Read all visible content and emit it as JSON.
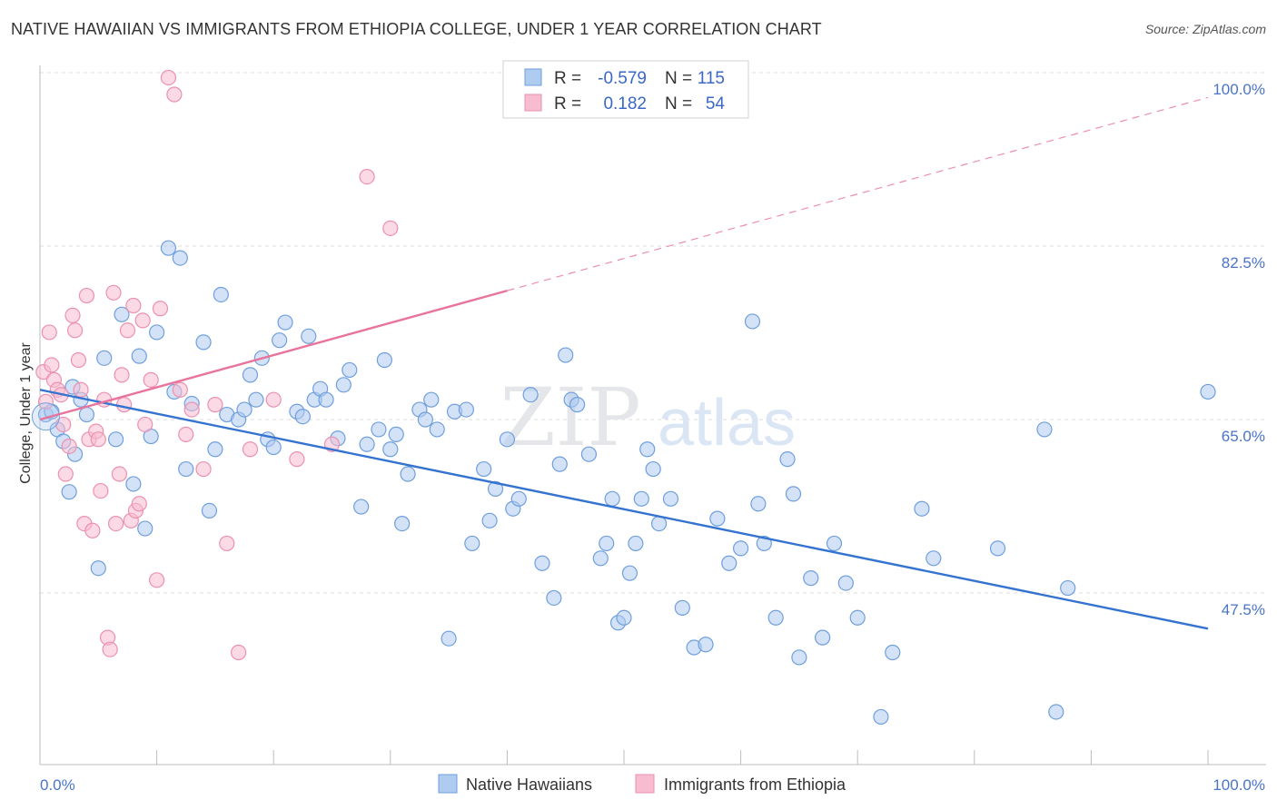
{
  "header": {
    "title": "NATIVE HAWAIIAN VS IMMIGRANTS FROM ETHIOPIA COLLEGE, UNDER 1 YEAR CORRELATION CHART",
    "source": "Source: ZipAtlas.com"
  },
  "watermark": {
    "zip": "ZIP",
    "atlas": "atlas"
  },
  "chart_data": {
    "type": "scatter",
    "ylabel": "College, Under 1 year",
    "xlim": [
      0,
      100
    ],
    "ylim": [
      29,
      100
    ],
    "x_tick_labels": [
      "0.0%",
      "100.0%"
    ],
    "y_ticks": [
      {
        "value": 100,
        "label": "100.0%"
      },
      {
        "value": 82.5,
        "label": "82.5%"
      },
      {
        "value": 65,
        "label": "65.0%"
      },
      {
        "value": 47.5,
        "label": "47.5%"
      }
    ],
    "grid": "horizontal-dashed",
    "legend_position": "top-center",
    "colors": {
      "blue_fill": "#aecbf0",
      "blue_stroke": "#6f9fdd",
      "blue_line": "#3573d0",
      "pink_fill": "#f7bccf",
      "pink_stroke": "#ec91ae",
      "pink_line": "#e8739b",
      "tick_text": "#4a74c8"
    },
    "stats": [
      {
        "r_label": "R =",
        "r_value": "-0.579",
        "n_label": "N =",
        "n_value": "115",
        "color": "blue"
      },
      {
        "r_label": "R =",
        "r_value": "0.182",
        "n_label": "N =",
        "n_value": "54",
        "color": "pink"
      }
    ],
    "series": [
      {
        "name": "Native Hawaiians",
        "color": "blue",
        "trend": {
          "x0": 0,
          "y0": 68.0,
          "x1": 100,
          "y1": 43.9
        },
        "points": [
          [
            0.5,
            65.5
          ],
          [
            1.0,
            65.8
          ],
          [
            1.5,
            64.0
          ],
          [
            2.0,
            62.8
          ],
          [
            2.5,
            57.7
          ],
          [
            2.8,
            68.3
          ],
          [
            3.0,
            61.5
          ],
          [
            3.5,
            67.0
          ],
          [
            4.0,
            65.5
          ],
          [
            5.0,
            50.0
          ],
          [
            5.5,
            71.2
          ],
          [
            6.5,
            63.0
          ],
          [
            7.0,
            75.6
          ],
          [
            8.0,
            58.5
          ],
          [
            8.5,
            71.4
          ],
          [
            9.0,
            54.0
          ],
          [
            9.5,
            63.3
          ],
          [
            10.0,
            73.8
          ],
          [
            11.0,
            82.3
          ],
          [
            11.5,
            67.8
          ],
          [
            12.0,
            81.3
          ],
          [
            12.5,
            60.0
          ],
          [
            13.0,
            66.6
          ],
          [
            14.0,
            72.8
          ],
          [
            14.5,
            55.8
          ],
          [
            15.0,
            62.0
          ],
          [
            15.5,
            77.6
          ],
          [
            16.0,
            65.5
          ],
          [
            17.0,
            65.0
          ],
          [
            17.5,
            66.0
          ],
          [
            18.0,
            69.5
          ],
          [
            18.5,
            67.0
          ],
          [
            19.0,
            71.2
          ],
          [
            19.5,
            63.0
          ],
          [
            20.0,
            62.2
          ],
          [
            20.5,
            73.0
          ],
          [
            21.0,
            74.8
          ],
          [
            22.0,
            65.8
          ],
          [
            22.5,
            65.3
          ],
          [
            23.0,
            73.4
          ],
          [
            23.5,
            67.0
          ],
          [
            24.0,
            68.1
          ],
          [
            24.5,
            67.0
          ],
          [
            25.5,
            63.1
          ],
          [
            26.0,
            68.5
          ],
          [
            26.5,
            70.0
          ],
          [
            27.5,
            56.2
          ],
          [
            28.0,
            62.5
          ],
          [
            29.0,
            64.0
          ],
          [
            29.5,
            71.0
          ],
          [
            30.0,
            62.0
          ],
          [
            30.5,
            63.5
          ],
          [
            31.0,
            54.5
          ],
          [
            31.5,
            59.5
          ],
          [
            32.5,
            66.0
          ],
          [
            33.0,
            65.0
          ],
          [
            33.5,
            67.0
          ],
          [
            34.0,
            64.0
          ],
          [
            35.0,
            42.9
          ],
          [
            35.5,
            65.8
          ],
          [
            36.5,
            66.0
          ],
          [
            37.0,
            52.5
          ],
          [
            38.0,
            60.0
          ],
          [
            38.5,
            54.8
          ],
          [
            39.0,
            58.0
          ],
          [
            40.0,
            63.0
          ],
          [
            40.5,
            56.0
          ],
          [
            41.0,
            57.0
          ],
          [
            42.0,
            67.5
          ],
          [
            43.0,
            50.5
          ],
          [
            44.0,
            47.0
          ],
          [
            44.5,
            60.5
          ],
          [
            45.0,
            71.5
          ],
          [
            45.5,
            67.0
          ],
          [
            46.0,
            66.5
          ],
          [
            47.0,
            61.5
          ],
          [
            48.0,
            51.0
          ],
          [
            48.5,
            52.5
          ],
          [
            49.0,
            57.0
          ],
          [
            49.5,
            44.5
          ],
          [
            50.0,
            45.0
          ],
          [
            50.5,
            49.5
          ],
          [
            51.0,
            52.5
          ],
          [
            51.5,
            57.0
          ],
          [
            52.0,
            62.0
          ],
          [
            52.5,
            60.0
          ],
          [
            53.0,
            54.5
          ],
          [
            54.0,
            57.0
          ],
          [
            55.0,
            46.0
          ],
          [
            56.0,
            42.0
          ],
          [
            57.0,
            42.3
          ],
          [
            58.0,
            55.0
          ],
          [
            59.0,
            50.5
          ],
          [
            60.0,
            52.0
          ],
          [
            61.0,
            74.9
          ],
          [
            61.5,
            56.5
          ],
          [
            62.0,
            52.5
          ],
          [
            63.0,
            45.0
          ],
          [
            64.0,
            61.0
          ],
          [
            64.5,
            57.5
          ],
          [
            65.0,
            41.0
          ],
          [
            66.0,
            49.0
          ],
          [
            67.0,
            43.0
          ],
          [
            68.0,
            52.5
          ],
          [
            69.0,
            48.5
          ],
          [
            70.0,
            45.0
          ],
          [
            72.0,
            35.0
          ],
          [
            73.0,
            41.5
          ],
          [
            75.5,
            56.0
          ],
          [
            76.5,
            51.0
          ],
          [
            82.0,
            52.0
          ],
          [
            86.0,
            64.0
          ],
          [
            87.0,
            35.5
          ],
          [
            88.0,
            48.0
          ],
          [
            100.0,
            67.8
          ]
        ]
      },
      {
        "name": "Immigrants from Ethiopia",
        "color": "pink",
        "trend": {
          "x0": 0,
          "y0": 65.0,
          "x1": 40,
          "y1": 78.0,
          "dashed_to": {
            "x": 100,
            "y": 97.5
          }
        },
        "points": [
          [
            0.3,
            69.8
          ],
          [
            0.5,
            66.8
          ],
          [
            0.8,
            73.8
          ],
          [
            1.0,
            70.5
          ],
          [
            1.2,
            69.0
          ],
          [
            1.5,
            68.0
          ],
          [
            1.8,
            67.5
          ],
          [
            2.0,
            64.5
          ],
          [
            2.2,
            59.5
          ],
          [
            2.5,
            62.3
          ],
          [
            2.8,
            75.5
          ],
          [
            3.0,
            74.0
          ],
          [
            3.3,
            71.0
          ],
          [
            3.5,
            68.0
          ],
          [
            3.8,
            54.5
          ],
          [
            4.0,
            77.5
          ],
          [
            4.2,
            63.0
          ],
          [
            4.5,
            53.8
          ],
          [
            4.8,
            63.8
          ],
          [
            5.0,
            63.0
          ],
          [
            5.2,
            57.8
          ],
          [
            5.5,
            67.0
          ],
          [
            5.8,
            43.0
          ],
          [
            6.0,
            41.8
          ],
          [
            6.3,
            77.8
          ],
          [
            6.5,
            54.5
          ],
          [
            6.8,
            59.5
          ],
          [
            7.0,
            69.5
          ],
          [
            7.2,
            66.5
          ],
          [
            7.5,
            74.0
          ],
          [
            7.8,
            54.8
          ],
          [
            8.0,
            76.5
          ],
          [
            8.2,
            55.8
          ],
          [
            8.5,
            56.5
          ],
          [
            8.8,
            75.0
          ],
          [
            9.0,
            64.5
          ],
          [
            9.5,
            69.0
          ],
          [
            10.0,
            48.8
          ],
          [
            10.3,
            76.2
          ],
          [
            11.0,
            99.5
          ],
          [
            11.5,
            97.8
          ],
          [
            12.0,
            68.0
          ],
          [
            12.5,
            63.5
          ],
          [
            13.0,
            66.0
          ],
          [
            14.0,
            60.0
          ],
          [
            15.0,
            66.5
          ],
          [
            16.0,
            52.5
          ],
          [
            17.0,
            41.5
          ],
          [
            18.0,
            62.0
          ],
          [
            20.0,
            67.0
          ],
          [
            22.0,
            61.0
          ],
          [
            25.0,
            62.5
          ],
          [
            28.0,
            89.5
          ],
          [
            30.0,
            84.3
          ]
        ]
      }
    ]
  }
}
